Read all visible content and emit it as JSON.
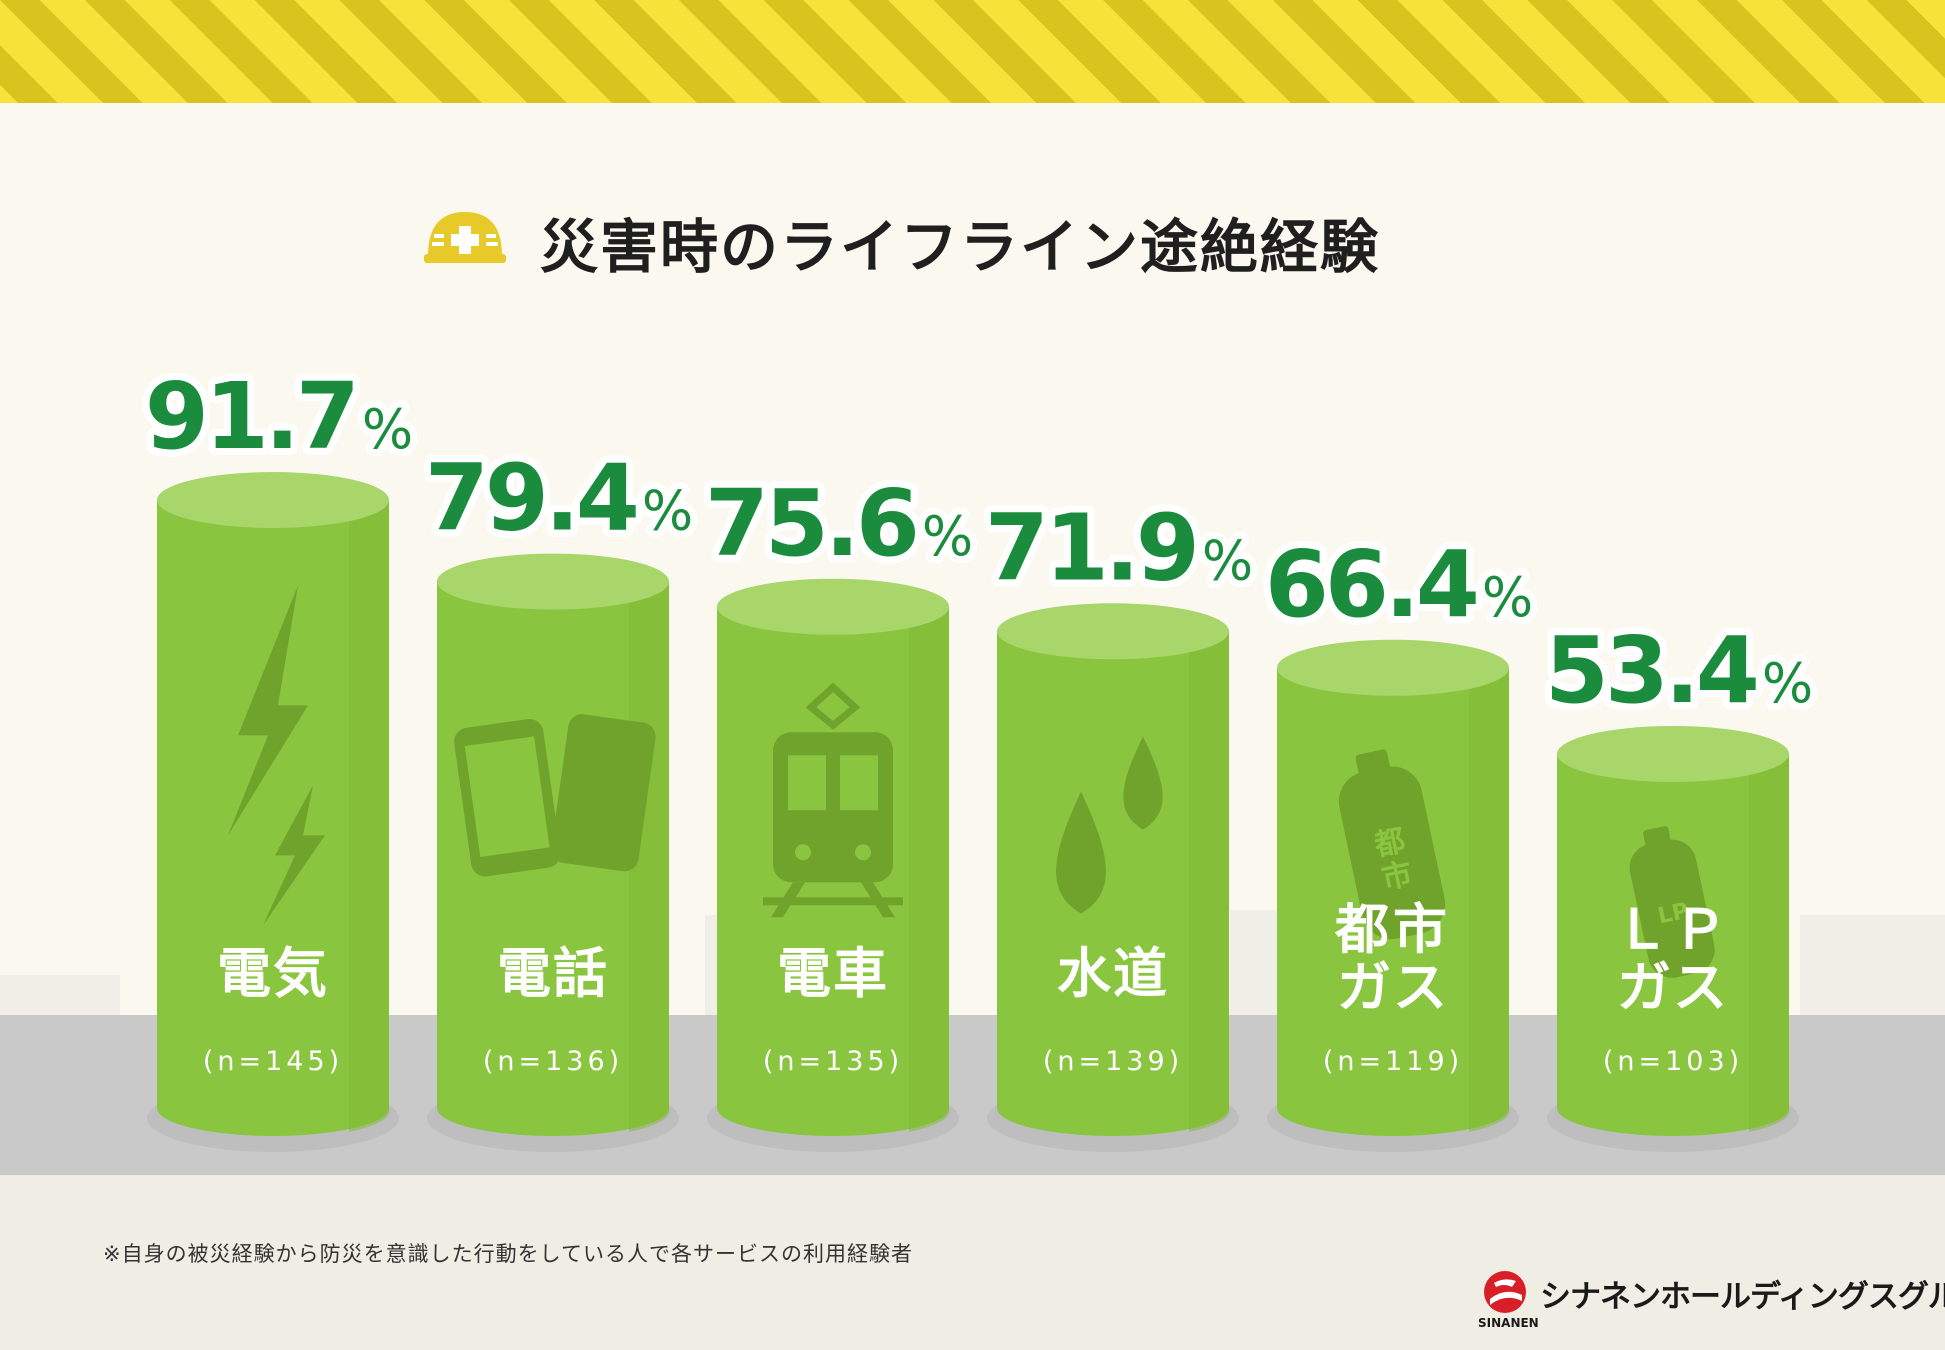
{
  "title": "災害時のライフライン途絶経験",
  "footnote": "※自身の被災経験から防災を意識した行動をしている人で各サービスの利用経験者",
  "logo": {
    "name": "シナネンホールディングスグループ",
    "sub": "SINANEN"
  },
  "colors": {
    "value": "#1b8c3e",
    "cylinder": "#8ac53f",
    "cylinder_top": "#a8d66a",
    "stripe": "#e9d22b",
    "ground": "#c9c9c9"
  },
  "chart_data": {
    "type": "bar",
    "title": "災害時のライフライン途絶経験",
    "unit": "%",
    "ylim": [
      0,
      100
    ],
    "categories": [
      {
        "label_lines": [
          "電気"
        ],
        "n": "(n=145)",
        "value": 91.7,
        "value_text": "91.7",
        "icon": "lightning-icon"
      },
      {
        "label_lines": [
          "電話"
        ],
        "n": "(n=136)",
        "value": 79.4,
        "value_text": "79.4",
        "icon": "phone-icon"
      },
      {
        "label_lines": [
          "電車"
        ],
        "n": "(n=135)",
        "value": 75.6,
        "value_text": "75.6",
        "icon": "train-icon"
      },
      {
        "label_lines": [
          "水道"
        ],
        "n": "(n=139)",
        "value": 71.9,
        "value_text": "71.9",
        "icon": "water-drop-icon"
      },
      {
        "label_lines": [
          "都市",
          "ガス"
        ],
        "n": "(n=119)",
        "value": 66.4,
        "value_text": "66.4",
        "icon": "gas-cylinder-icon",
        "icon_text": "都市"
      },
      {
        "label_lines": [
          "ＬＰ",
          "ガス"
        ],
        "n": "(n=103)",
        "value": 53.4,
        "value_text": "53.4",
        "icon": "gas-cylinder-icon",
        "icon_text": "LP"
      }
    ]
  }
}
